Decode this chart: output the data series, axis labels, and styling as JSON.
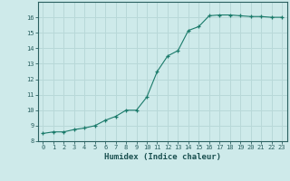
{
  "x": [
    0,
    1,
    2,
    3,
    4,
    5,
    6,
    7,
    8,
    9,
    10,
    11,
    12,
    13,
    14,
    15,
    16,
    17,
    18,
    19,
    20,
    21,
    22,
    23
  ],
  "y": [
    8.5,
    8.6,
    8.6,
    8.75,
    8.85,
    9.0,
    9.35,
    9.6,
    10.0,
    10.0,
    10.85,
    12.5,
    13.5,
    13.85,
    15.15,
    15.4,
    16.1,
    16.15,
    16.15,
    16.1,
    16.05,
    16.05,
    16.0,
    16.0
  ],
  "xlabel": "Humidex (Indice chaleur)",
  "line_color": "#1a7a6a",
  "marker": "+",
  "bg_color": "#ceeaea",
  "grid_color": "#b8d8d8",
  "xlim": [
    -0.5,
    23.5
  ],
  "ylim": [
    8,
    17
  ],
  "yticks": [
    8,
    9,
    10,
    11,
    12,
    13,
    14,
    15,
    16
  ],
  "xticks": [
    0,
    1,
    2,
    3,
    4,
    5,
    6,
    7,
    8,
    9,
    10,
    11,
    12,
    13,
    14,
    15,
    16,
    17,
    18,
    19,
    20,
    21,
    22,
    23
  ]
}
